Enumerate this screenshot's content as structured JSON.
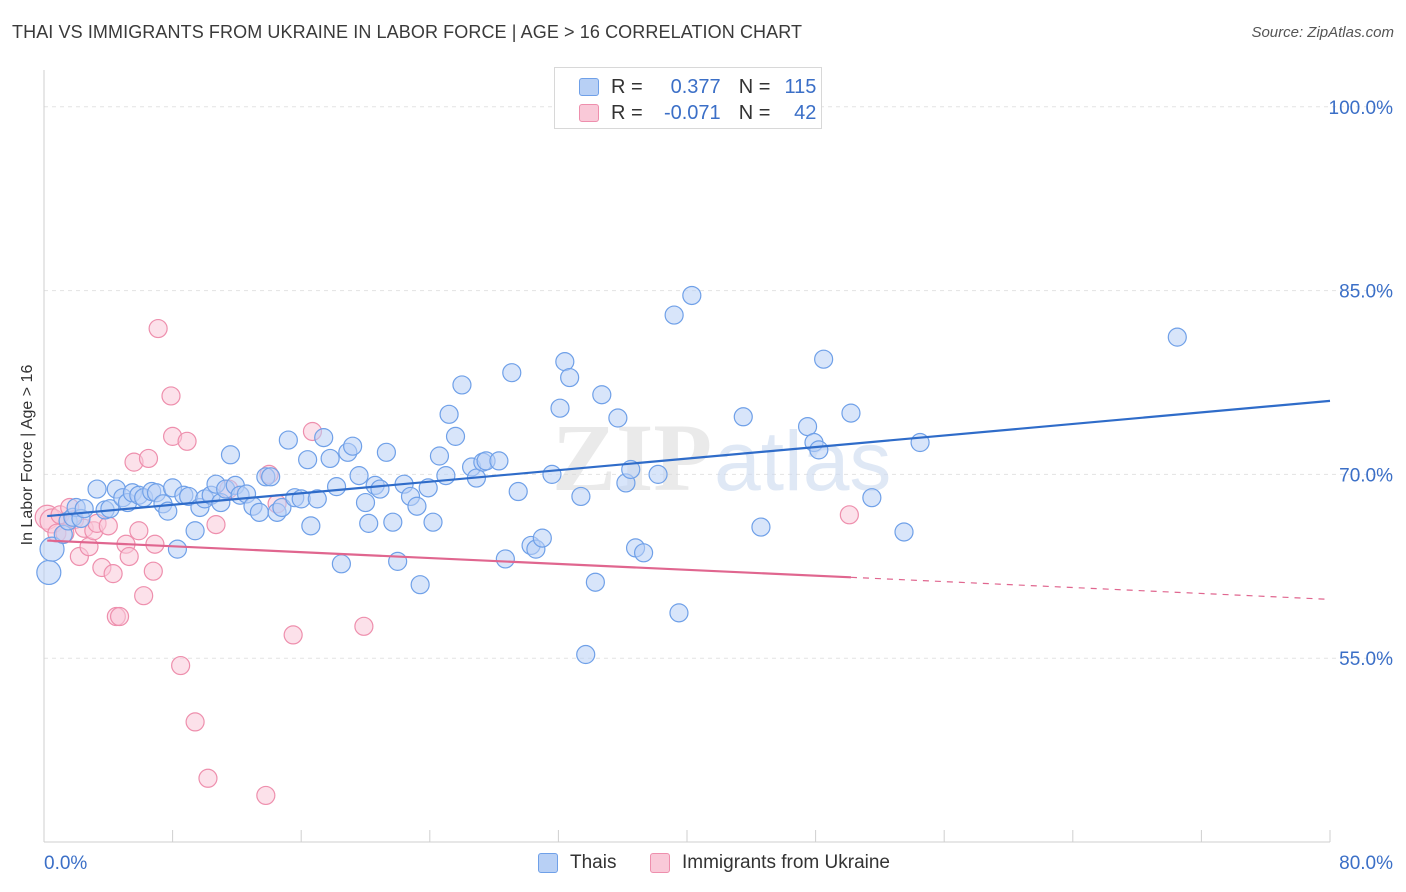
{
  "header": {
    "title": "THAI VS IMMIGRANTS FROM UKRAINE IN LABOR FORCE | AGE > 16 CORRELATION CHART",
    "source": "Source: ZipAtlas.com"
  },
  "legend": {
    "r_label": "R =",
    "n_label": "N =",
    "rows": [
      {
        "r": "0.377",
        "n": "115",
        "color": "#6fa0e8",
        "fill": "#b8d0f5"
      },
      {
        "r": "-0.071",
        "n": "42",
        "color": "#ee8fad",
        "fill": "#f9c9d8"
      }
    ]
  },
  "watermark": {
    "zip": "ZIP",
    "atlas": "atlas"
  },
  "chart_data": {
    "type": "scatter",
    "title": "THAI VS IMMIGRANTS FROM UKRAINE IN LABOR FORCE | AGE > 16 CORRELATION CHART",
    "ylabel": "In Labor Force | Age > 16",
    "xlabel": "",
    "xlim": [
      0,
      80
    ],
    "ylim": [
      40,
      103
    ],
    "x_tick_labels": [
      "0.0%",
      "80.0%"
    ],
    "y_tick_values": [
      55,
      70,
      85,
      100
    ],
    "y_tick_labels": [
      "55.0%",
      "70.0%",
      "85.0%",
      "100.0%"
    ],
    "grid": true,
    "legend_position": "top-center",
    "series": [
      {
        "name": "Thais",
        "color": "#6fa0e8",
        "fill": "#b8d0f5",
        "trend": {
          "x": [
            0.2,
            80
          ],
          "y": [
            66.6,
            76.0
          ]
        },
        "points": [
          [
            0.3,
            62.0
          ],
          [
            0.5,
            63.9
          ],
          [
            1.2,
            65.1
          ],
          [
            1.5,
            66.2
          ],
          [
            1.8,
            66.5
          ],
          [
            2.0,
            67.3
          ],
          [
            2.3,
            66.4
          ],
          [
            2.5,
            67.2
          ],
          [
            3.3,
            68.8
          ],
          [
            3.8,
            67.1
          ],
          [
            4.1,
            67.2
          ],
          [
            4.5,
            68.8
          ],
          [
            4.9,
            68.1
          ],
          [
            5.2,
            67.7
          ],
          [
            5.5,
            68.5
          ],
          [
            5.9,
            68.3
          ],
          [
            6.2,
            68.1
          ],
          [
            6.7,
            68.6
          ],
          [
            7.0,
            68.5
          ],
          [
            7.4,
            67.6
          ],
          [
            7.7,
            67.0
          ],
          [
            8.0,
            68.9
          ],
          [
            8.3,
            63.9
          ],
          [
            8.7,
            68.3
          ],
          [
            9.0,
            68.2
          ],
          [
            9.4,
            65.4
          ],
          [
            9.7,
            67.3
          ],
          [
            10.0,
            68.0
          ],
          [
            10.4,
            68.3
          ],
          [
            10.7,
            69.2
          ],
          [
            11.0,
            67.7
          ],
          [
            11.3,
            68.8
          ],
          [
            11.6,
            71.6
          ],
          [
            11.9,
            69.1
          ],
          [
            12.2,
            68.3
          ],
          [
            12.6,
            68.4
          ],
          [
            13.0,
            67.4
          ],
          [
            13.4,
            66.9
          ],
          [
            13.8,
            69.8
          ],
          [
            14.1,
            69.8
          ],
          [
            14.5,
            66.9
          ],
          [
            14.8,
            67.3
          ],
          [
            15.2,
            72.8
          ],
          [
            15.6,
            68.1
          ],
          [
            16.0,
            68.0
          ],
          [
            16.4,
            71.2
          ],
          [
            16.6,
            65.8
          ],
          [
            17.0,
            68.0
          ],
          [
            17.4,
            73.0
          ],
          [
            17.8,
            71.3
          ],
          [
            18.2,
            69.0
          ],
          [
            18.5,
            62.7
          ],
          [
            18.9,
            71.8
          ],
          [
            19.2,
            72.3
          ],
          [
            19.6,
            69.9
          ],
          [
            20.0,
            67.7
          ],
          [
            20.2,
            66.0
          ],
          [
            20.6,
            69.1
          ],
          [
            20.9,
            68.8
          ],
          [
            21.3,
            71.8
          ],
          [
            21.7,
            66.1
          ],
          [
            22.0,
            62.9
          ],
          [
            22.4,
            69.2
          ],
          [
            22.8,
            68.2
          ],
          [
            23.2,
            67.4
          ],
          [
            23.4,
            61.0
          ],
          [
            23.9,
            68.9
          ],
          [
            24.2,
            66.1
          ],
          [
            24.6,
            71.5
          ],
          [
            25.0,
            69.9
          ],
          [
            25.2,
            74.9
          ],
          [
            25.6,
            73.1
          ],
          [
            26.0,
            77.3
          ],
          [
            26.6,
            70.6
          ],
          [
            26.9,
            69.7
          ],
          [
            27.3,
            71.0
          ],
          [
            27.5,
            71.1
          ],
          [
            28.3,
            71.1
          ],
          [
            28.7,
            63.1
          ],
          [
            29.1,
            78.3
          ],
          [
            29.5,
            68.6
          ],
          [
            30.3,
            64.2
          ],
          [
            30.6,
            63.9
          ],
          [
            31.0,
            64.8
          ],
          [
            31.6,
            70.0
          ],
          [
            32.1,
            75.4
          ],
          [
            32.4,
            79.2
          ],
          [
            32.7,
            77.9
          ],
          [
            33.4,
            68.2
          ],
          [
            33.7,
            55.3
          ],
          [
            34.3,
            61.2
          ],
          [
            34.7,
            76.5
          ],
          [
            35.7,
            74.6
          ],
          [
            36.2,
            69.3
          ],
          [
            36.5,
            70.4
          ],
          [
            36.8,
            64.0
          ],
          [
            37.3,
            63.6
          ],
          [
            38.2,
            70.0
          ],
          [
            39.2,
            83.0
          ],
          [
            39.5,
            58.7
          ],
          [
            40.3,
            84.6
          ],
          [
            43.5,
            74.7
          ],
          [
            44.6,
            65.7
          ],
          [
            47.5,
            73.9
          ],
          [
            47.9,
            72.6
          ],
          [
            48.2,
            72.0
          ],
          [
            48.5,
            79.4
          ],
          [
            50.2,
            75.0
          ],
          [
            51.5,
            68.1
          ],
          [
            53.5,
            65.3
          ],
          [
            54.5,
            72.6
          ],
          [
            70.5,
            81.2
          ]
        ]
      },
      {
        "name": "Immigrants from Ukraine",
        "color": "#ee8fad",
        "fill": "#f9c9d8",
        "trend": {
          "x": [
            0.2,
            50.2
          ],
          "y": [
            64.6,
            61.6
          ]
        },
        "trend_dashed": {
          "x": [
            50.2,
            80
          ],
          "y": [
            61.6,
            59.8
          ]
        },
        "points": [
          [
            0.2,
            66.5
          ],
          [
            0.5,
            66.2
          ],
          [
            0.8,
            65.2
          ],
          [
            1.0,
            66.7
          ],
          [
            1.3,
            65.2
          ],
          [
            1.6,
            67.3
          ],
          [
            1.9,
            66.3
          ],
          [
            2.2,
            63.3
          ],
          [
            2.5,
            65.6
          ],
          [
            2.8,
            64.1
          ],
          [
            3.1,
            65.4
          ],
          [
            3.3,
            66.0
          ],
          [
            3.6,
            62.4
          ],
          [
            4.0,
            65.8
          ],
          [
            4.3,
            61.9
          ],
          [
            4.5,
            58.4
          ],
          [
            4.7,
            58.4
          ],
          [
            5.1,
            64.3
          ],
          [
            5.3,
            63.3
          ],
          [
            5.6,
            71.0
          ],
          [
            5.9,
            65.4
          ],
          [
            6.2,
            60.1
          ],
          [
            6.5,
            71.3
          ],
          [
            6.8,
            62.1
          ],
          [
            6.9,
            64.3
          ],
          [
            7.1,
            81.9
          ],
          [
            7.9,
            76.4
          ],
          [
            8.0,
            73.1
          ],
          [
            8.5,
            54.4
          ],
          [
            8.9,
            72.7
          ],
          [
            9.4,
            49.8
          ],
          [
            10.2,
            45.2
          ],
          [
            10.7,
            65.9
          ],
          [
            11.5,
            68.8
          ],
          [
            13.8,
            43.8
          ],
          [
            14.0,
            70.0
          ],
          [
            14.5,
            67.6
          ],
          [
            15.5,
            56.9
          ],
          [
            16.7,
            73.5
          ],
          [
            19.9,
            57.6
          ],
          [
            50.1,
            66.7
          ]
        ]
      }
    ]
  },
  "bottom_legend": {
    "thais": "Thais",
    "ukraine": "Immigrants from Ukraine"
  }
}
